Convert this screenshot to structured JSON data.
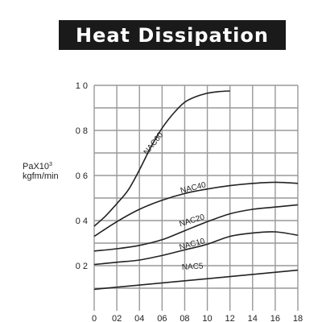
{
  "title": "Heat Dissipation",
  "ylabel": {
    "line1": "PaX10",
    "sup": "3",
    "line2": "kgfm/min"
  },
  "chart_data": {
    "type": "line",
    "title": "Heat Dissipation",
    "xlabel": "",
    "ylabel": "PaX10³ kgfm/min",
    "xlim": [
      0,
      18
    ],
    "ylim": [
      0,
      10
    ],
    "grid": true,
    "x_ticks": [
      0,
      2,
      4,
      6,
      8,
      10,
      12,
      14,
      16,
      18
    ],
    "x_tick_labels": [
      "0",
      "02",
      "04",
      "06",
      "08",
      "10",
      "12",
      "14",
      "16",
      "18"
    ],
    "y_ticks": [
      2,
      4,
      6,
      8,
      10
    ],
    "y_tick_labels": [
      "0 2",
      "0 4",
      "0 6",
      "0 8",
      "1 0"
    ],
    "series_color": "#222222",
    "grid_color": "#999999",
    "series": [
      {
        "name": "NAC60",
        "x": [
          0,
          1,
          2,
          3,
          4,
          5,
          6,
          7,
          8,
          9,
          10,
          11,
          12
        ],
        "y": [
          3.75,
          4.2,
          4.75,
          5.35,
          6.25,
          7.25,
          8.1,
          8.75,
          9.25,
          9.5,
          9.65,
          9.72,
          9.75
        ],
        "label_x": 5.4,
        "label_y": 7.35,
        "label_angle": -52
      },
      {
        "name": "NAC40",
        "x": [
          0,
          2,
          4,
          6,
          8,
          10,
          12,
          14,
          16,
          18
        ],
        "y": [
          3.3,
          3.95,
          4.5,
          4.9,
          5.2,
          5.4,
          5.55,
          5.65,
          5.7,
          5.65
        ],
        "label_x": 8.8,
        "label_y": 5.35,
        "label_angle": -14
      },
      {
        "name": "NAC20",
        "x": [
          0,
          2,
          4,
          6,
          8,
          10,
          12,
          14,
          16,
          18
        ],
        "y": [
          2.65,
          2.75,
          2.9,
          3.15,
          3.55,
          3.95,
          4.3,
          4.5,
          4.6,
          4.7
        ],
        "label_x": 8.7,
        "label_y": 3.9,
        "label_angle": -17
      },
      {
        "name": "NAC10",
        "x": [
          0,
          2,
          4,
          6,
          8,
          10,
          12,
          14,
          16,
          18
        ],
        "y": [
          2.05,
          2.15,
          2.25,
          2.45,
          2.7,
          2.95,
          3.3,
          3.45,
          3.5,
          3.35
        ],
        "label_x": 8.7,
        "label_y": 2.85,
        "label_angle": -15
      },
      {
        "name": "NAC5",
        "x": [
          0,
          18
        ],
        "y": [
          0.95,
          1.8
        ],
        "label_x": 8.7,
        "label_y": 1.85,
        "label_angle": -3
      }
    ]
  }
}
